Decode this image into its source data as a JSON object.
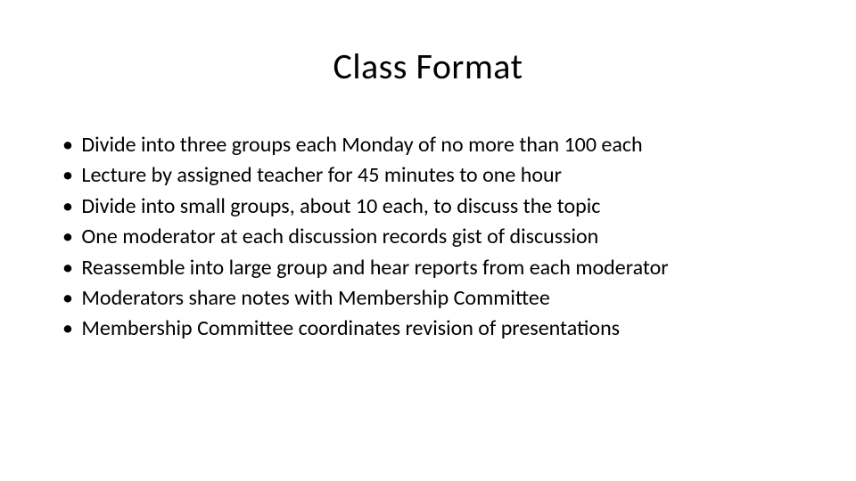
{
  "slide": {
    "title": "Class Format",
    "bullets": [
      "Divide into three groups each Monday of no more than 100 each",
      "Lecture by assigned teacher for 45 minutes to one hour",
      "Divide into small groups, about 10 each, to discuss the topic",
      "One moderator at each discussion records gist of discussion",
      "Reassemble into large group and hear reports from each moderator",
      "Moderators share notes with Membership Committee",
      "Membership Committee coordinates revision of presentations"
    ],
    "bullet_marker": "•",
    "styling": {
      "background_color": "#ffffff",
      "text_color": "#000000",
      "title_fontsize": 40,
      "title_fontweight": 400,
      "bullet_fontsize": 24,
      "bullet_lineheight": 1.35,
      "font_family": "Calibri"
    }
  }
}
